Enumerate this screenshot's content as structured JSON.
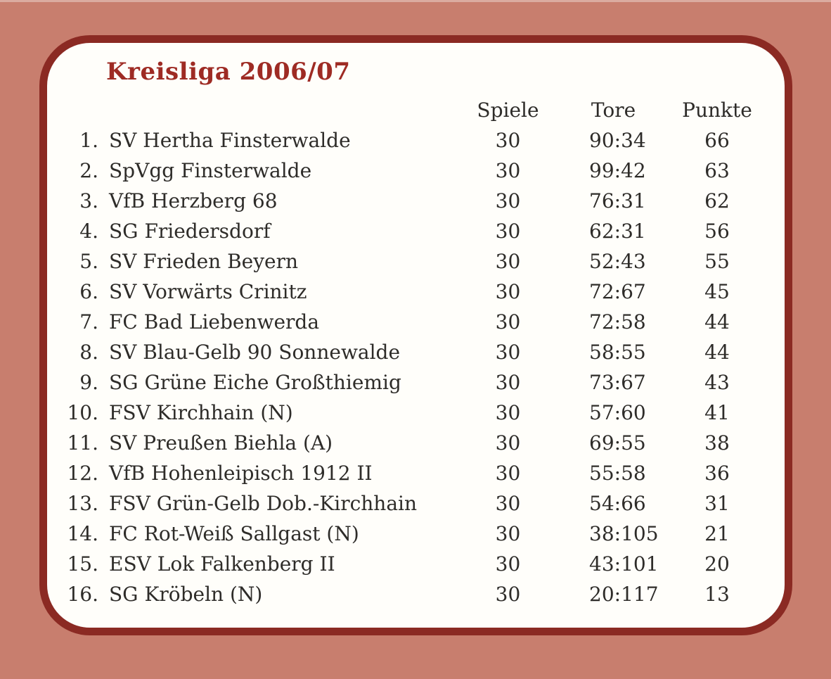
{
  "title": "Kreisliga 2006/07",
  "colors": {
    "background": "#c87e6e",
    "card": "#fffefa",
    "border": "#8b2a23",
    "title": "#9e2b24",
    "text": "#2e2c29"
  },
  "table": {
    "columns": [
      "Spiele",
      "Tore",
      "Punkte"
    ],
    "rows": [
      {
        "rank": "1.",
        "team": "SV Hertha Finsterwalde",
        "spiele": "30",
        "tore": "90:34",
        "punkte": "66"
      },
      {
        "rank": "2.",
        "team": "SpVgg Finsterwalde",
        "spiele": "30",
        "tore": "99:42",
        "punkte": "63"
      },
      {
        "rank": "3.",
        "team": "VfB Herzberg 68",
        "spiele": "30",
        "tore": "76:31",
        "punkte": "62"
      },
      {
        "rank": "4.",
        "team": "SG Friedersdorf",
        "spiele": "30",
        "tore": "62:31",
        "punkte": "56"
      },
      {
        "rank": "5.",
        "team": "SV Frieden Beyern",
        "spiele": "30",
        "tore": "52:43",
        "punkte": "55"
      },
      {
        "rank": "6.",
        "team": "SV Vorwärts Crinitz",
        "spiele": "30",
        "tore": "72:67",
        "punkte": "45"
      },
      {
        "rank": "7.",
        "team": "FC Bad Liebenwerda",
        "spiele": "30",
        "tore": "72:58",
        "punkte": "44"
      },
      {
        "rank": "8.",
        "team": "SV Blau-Gelb 90 Sonnewalde",
        "spiele": "30",
        "tore": "58:55",
        "punkte": "44"
      },
      {
        "rank": "9.",
        "team": "SG Grüne Eiche Großthiemig",
        "spiele": "30",
        "tore": "73:67",
        "punkte": "43"
      },
      {
        "rank": "10.",
        "team": "FSV Kirchhain (N)",
        "spiele": "30",
        "tore": "57:60",
        "punkte": "41"
      },
      {
        "rank": "11.",
        "team": "SV Preußen Biehla (A)",
        "spiele": "30",
        "tore": "69:55",
        "punkte": "38"
      },
      {
        "rank": "12.",
        "team": "VfB Hohenleipisch 1912 II",
        "spiele": "30",
        "tore": "55:58",
        "punkte": "36"
      },
      {
        "rank": "13.",
        "team": "FSV Grün-Gelb Dob.-Kirchhain",
        "spiele": "30",
        "tore": "54:66",
        "punkte": "31"
      },
      {
        "rank": "14.",
        "team": "FC Rot-Weiß Sallgast (N)",
        "spiele": "30",
        "tore": "38:105",
        "punkte": "21"
      },
      {
        "rank": "15.",
        "team": "ESV Lok Falkenberg II",
        "spiele": "30",
        "tore": "43:101",
        "punkte": "20"
      },
      {
        "rank": "16.",
        "team": "SG Kröbeln (N)",
        "spiele": "30",
        "tore": "20:117",
        "punkte": "13"
      }
    ]
  }
}
